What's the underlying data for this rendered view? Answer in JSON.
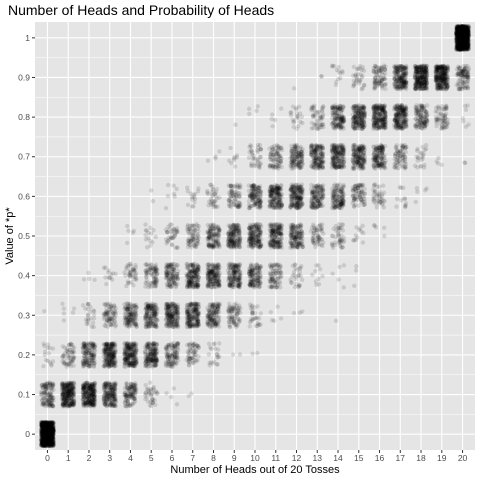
{
  "chart_data": {
    "type": "scatter",
    "title": "Number of Heads and Probability of Heads",
    "xlabel": "Number of Heads out of 20 Tosses",
    "ylabel": "Value of *p*",
    "x_ticks": [
      0,
      1,
      2,
      3,
      4,
      5,
      6,
      7,
      8,
      9,
      10,
      11,
      12,
      13,
      14,
      15,
      16,
      17,
      18,
      19,
      20
    ],
    "y_ticks": [
      0,
      0.1,
      0.2,
      0.3,
      0.4,
      0.5,
      0.6,
      0.7,
      0.8,
      0.9,
      1
    ],
    "xlim": [
      -0.6,
      20.6
    ],
    "ylim": [
      -0.04,
      1.04
    ],
    "grid": true,
    "legend": "none",
    "point_color": "#000000",
    "point_alpha": 0.12,
    "panel_background": "#e5e5e5",
    "grid_color": "#ffffff",
    "p_values": [
      0,
      0.1,
      0.2,
      0.3,
      0.4,
      0.5,
      0.6,
      0.7,
      0.8,
      0.9,
      1
    ],
    "jitter": {
      "x": 0.3,
      "y": 0.03
    },
    "simulations_per_p": 1000
  }
}
